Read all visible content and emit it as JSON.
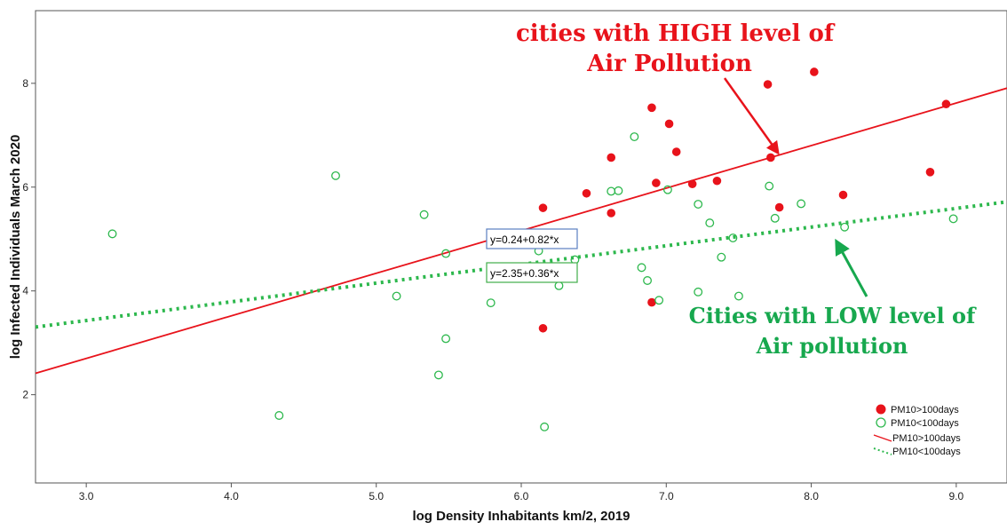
{
  "chart_data": {
    "type": "scatter",
    "xlabel": "log Density Inhabitants km/2, 2019",
    "ylabel": "log Infected Individuals March 2020",
    "xlim": [
      2.65,
      9.35
    ],
    "ylim": [
      0.3,
      9.4
    ],
    "x_ticks": [
      "3.0",
      "4.0",
      "5.0",
      "6.0",
      "7.0",
      "8.0",
      "9.0"
    ],
    "x_tick_values": [
      3.0,
      4.0,
      5.0,
      6.0,
      7.0,
      8.0,
      9.0
    ],
    "y_ticks": [
      "2",
      "4",
      "6",
      "8"
    ],
    "y_tick_values": [
      2,
      4,
      6,
      8
    ],
    "grid": false,
    "legend_position": "bottom-right",
    "colors": {
      "high": "#e8131b",
      "low": "#2db84d",
      "red_arrow": "#e8131b",
      "green_arrow": "#17a84e",
      "eq_red_border": "#5b7fc0",
      "eq_green_border": "#3fae49"
    },
    "series": [
      {
        "name": "PM10>100days",
        "marker": "filled-circle",
        "points": [
          [
            6.15,
            5.6
          ],
          [
            6.62,
            6.57
          ],
          [
            6.45,
            5.88
          ],
          [
            6.62,
            5.5
          ],
          [
            6.15,
            3.28
          ],
          [
            6.9,
            7.53
          ],
          [
            7.02,
            7.22
          ],
          [
            7.07,
            6.68
          ],
          [
            6.93,
            6.08
          ],
          [
            7.18,
            6.06
          ],
          [
            7.35,
            6.12
          ],
          [
            6.9,
            3.78
          ],
          [
            7.7,
            7.98
          ],
          [
            7.72,
            6.57
          ],
          [
            7.78,
            5.61
          ],
          [
            8.02,
            8.22
          ],
          [
            8.22,
            5.85
          ],
          [
            8.82,
            6.29
          ],
          [
            8.93,
            7.6
          ]
        ]
      },
      {
        "name": "PM10<100days",
        "marker": "open-circle",
        "points": [
          [
            3.18,
            5.1
          ],
          [
            4.33,
            1.6
          ],
          [
            4.72,
            6.22
          ],
          [
            5.14,
            3.9
          ],
          [
            5.33,
            5.47
          ],
          [
            5.48,
            4.72
          ],
          [
            5.48,
            3.08
          ],
          [
            5.43,
            2.38
          ],
          [
            5.79,
            3.77
          ],
          [
            6.12,
            4.77
          ],
          [
            6.18,
            4.93
          ],
          [
            6.16,
            1.38
          ],
          [
            6.26,
            4.1
          ],
          [
            6.37,
            4.6
          ],
          [
            6.62,
            5.92
          ],
          [
            6.67,
            5.93
          ],
          [
            6.78,
            6.97
          ],
          [
            6.83,
            4.45
          ],
          [
            6.87,
            4.2
          ],
          [
            6.95,
            3.82
          ],
          [
            7.01,
            5.95
          ],
          [
            7.22,
            5.67
          ],
          [
            7.22,
            3.98
          ],
          [
            7.3,
            5.31
          ],
          [
            7.38,
            4.65
          ],
          [
            7.46,
            5.02
          ],
          [
            7.5,
            3.9
          ],
          [
            7.71,
            6.02
          ],
          [
            7.75,
            5.4
          ],
          [
            7.93,
            5.68
          ],
          [
            8.23,
            5.23
          ],
          [
            8.98,
            5.39
          ]
        ]
      }
    ],
    "fit_lines": [
      {
        "name": "PM10>100days",
        "style": "solid",
        "intercept": 0.24,
        "slope": 0.82,
        "equation": "y=0.24+0.82*x"
      },
      {
        "name": "PM10<100days",
        "style": "dotted",
        "intercept": 2.35,
        "slope": 0.36,
        "equation": "y=2.35+0.36*x"
      }
    ],
    "legend": [
      "PM10>100days",
      "PM10<100days",
      "PM10>100days",
      "PM10<100days"
    ],
    "annotations": {
      "high_line1": "cities with HIGH level of",
      "high_line2": "Air Pollution",
      "low_line1": "Cities with LOW level of",
      "low_line2": "Air pollution"
    }
  }
}
